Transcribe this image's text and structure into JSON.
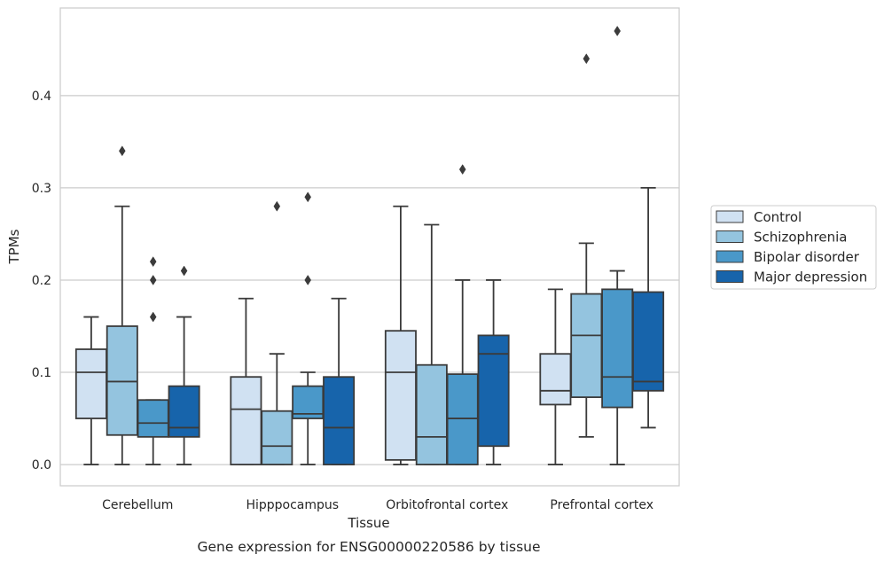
{
  "chart_data": {
    "type": "box",
    "title": "",
    "caption": "Gene expression for ENSG00000220586 by tissue",
    "xlabel": "Tissue",
    "ylabel": "TPMs",
    "categories": [
      "Cerebellum",
      "Hipppocampus",
      "Orbitofrontal cortex",
      "Prefrontal cortex"
    ],
    "ylim": [
      -0.023,
      0.495
    ],
    "yticks": [
      0.0,
      0.1,
      0.2,
      0.3,
      0.4
    ],
    "ytick_labels": [
      "0.0",
      "0.1",
      "0.2",
      "0.3",
      "0.4"
    ],
    "grid": "horizontal",
    "legend_position": "center-right, outside plot",
    "series": [
      {
        "name": "Control",
        "color": "#d0e1f2",
        "boxes": [
          {
            "whisker_low": 0.0,
            "q1": 0.05,
            "median": 0.1,
            "q3": 0.125,
            "whisker_high": 0.16,
            "outliers": []
          },
          {
            "whisker_low": 0.0,
            "q1": 0.0,
            "median": 0.06,
            "q3": 0.095,
            "whisker_high": 0.18,
            "outliers": []
          },
          {
            "whisker_low": 0.0,
            "q1": 0.005,
            "median": 0.1,
            "q3": 0.145,
            "whisker_high": 0.28,
            "outliers": []
          },
          {
            "whisker_low": 0.0,
            "q1": 0.065,
            "median": 0.08,
            "q3": 0.12,
            "whisker_high": 0.19,
            "outliers": []
          }
        ]
      },
      {
        "name": "Schizophrenia",
        "color": "#94c4df",
        "boxes": [
          {
            "whisker_low": 0.0,
            "q1": 0.032,
            "median": 0.09,
            "q3": 0.15,
            "whisker_high": 0.28,
            "outliers": [
              0.34
            ]
          },
          {
            "whisker_low": 0.0,
            "q1": 0.0,
            "median": 0.02,
            "q3": 0.058,
            "whisker_high": 0.12,
            "outliers": [
              0.28
            ]
          },
          {
            "whisker_low": 0.0,
            "q1": 0.0,
            "median": 0.03,
            "q3": 0.108,
            "whisker_high": 0.26,
            "outliers": []
          },
          {
            "whisker_low": 0.03,
            "q1": 0.073,
            "median": 0.14,
            "q3": 0.185,
            "whisker_high": 0.24,
            "outliers": [
              0.44
            ]
          }
        ]
      },
      {
        "name": "Bipolar disorder",
        "color": "#4a98c9",
        "boxes": [
          {
            "whisker_low": 0.0,
            "q1": 0.03,
            "median": 0.045,
            "q3": 0.07,
            "whisker_high": 0.07,
            "outliers": [
              0.22,
              0.2,
              0.16
            ]
          },
          {
            "whisker_low": 0.0,
            "q1": 0.05,
            "median": 0.055,
            "q3": 0.085,
            "whisker_high": 0.1,
            "outliers": [
              0.2,
              0.29
            ]
          },
          {
            "whisker_low": 0.0,
            "q1": 0.0,
            "median": 0.05,
            "q3": 0.098,
            "whisker_high": 0.2,
            "outliers": [
              0.32
            ]
          },
          {
            "whisker_low": 0.0,
            "q1": 0.062,
            "median": 0.095,
            "q3": 0.19,
            "whisker_high": 0.21,
            "outliers": [
              0.47
            ]
          }
        ]
      },
      {
        "name": "Major depression",
        "color": "#1764ab",
        "boxes": [
          {
            "whisker_low": 0.0,
            "q1": 0.03,
            "median": 0.04,
            "q3": 0.085,
            "whisker_high": 0.16,
            "outliers": [
              0.21
            ]
          },
          {
            "whisker_low": 0.0,
            "q1": 0.0,
            "median": 0.04,
            "q3": 0.095,
            "whisker_high": 0.18,
            "outliers": []
          },
          {
            "whisker_low": 0.0,
            "q1": 0.02,
            "median": 0.12,
            "q3": 0.14,
            "whisker_high": 0.2,
            "outliers": []
          },
          {
            "whisker_low": 0.04,
            "q1": 0.08,
            "median": 0.09,
            "q3": 0.187,
            "whisker_high": 0.3,
            "outliers": []
          }
        ]
      }
    ],
    "colors": {
      "grid": "#cccccc",
      "spine": "#cccccc",
      "lines": "#3b3b3b",
      "legend_border": "#cccccc"
    }
  }
}
